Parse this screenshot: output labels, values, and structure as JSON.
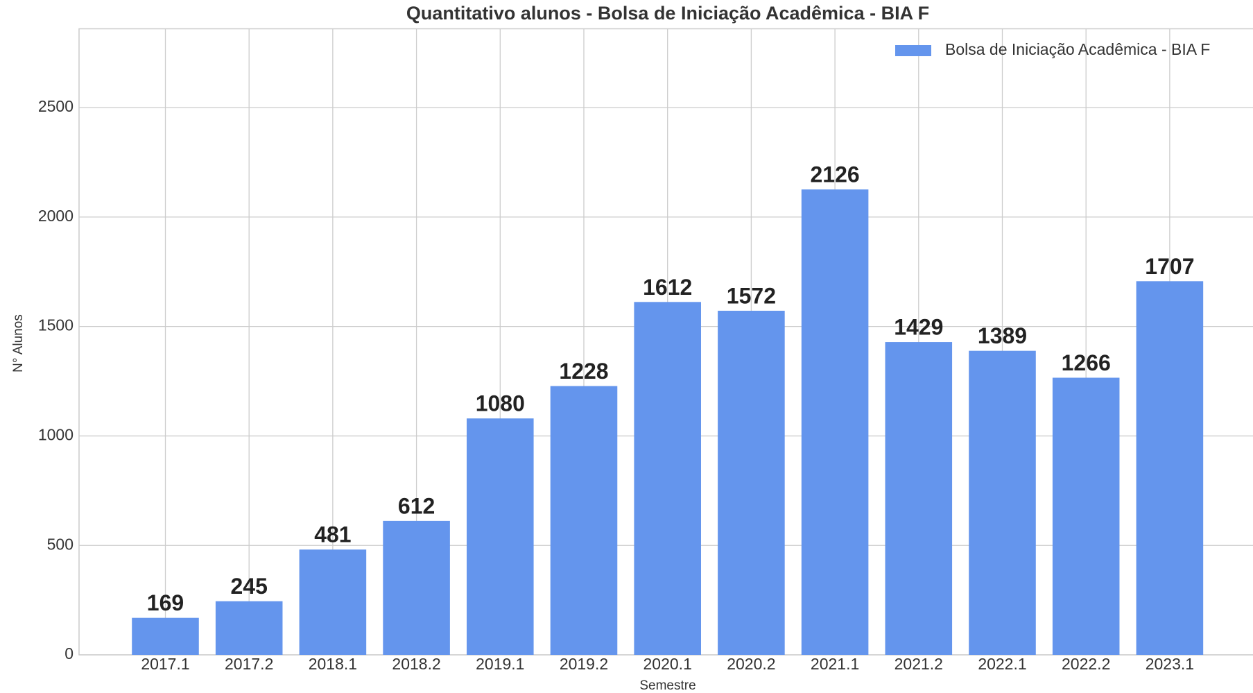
{
  "chart_data": {
    "type": "bar",
    "title": "Quantitativo alunos - Bolsa de Iniciação Acadêmica - BIA F",
    "x_label": "Semestre",
    "y_label": "N° Alunos",
    "categories": [
      "2017.1",
      "2017.2",
      "2018.1",
      "2018.2",
      "2019.1",
      "2019.2",
      "2020.1",
      "2020.2",
      "2021.1",
      "2021.2",
      "2022.1",
      "2022.2",
      "2023.1"
    ],
    "series": [
      {
        "name": "Bolsa de Iniciação Acadêmica - BIA F",
        "color": "#6495ed",
        "values": [
          169,
          245,
          481,
          612,
          1080,
          1228,
          1612,
          1572,
          2126,
          1429,
          1389,
          1266,
          1707
        ]
      }
    ],
    "ylim": [
      0,
      2860
    ],
    "yticks": [
      0,
      500,
      1000,
      1500,
      2000,
      2500
    ],
    "grid": true,
    "legend": "upper right"
  }
}
